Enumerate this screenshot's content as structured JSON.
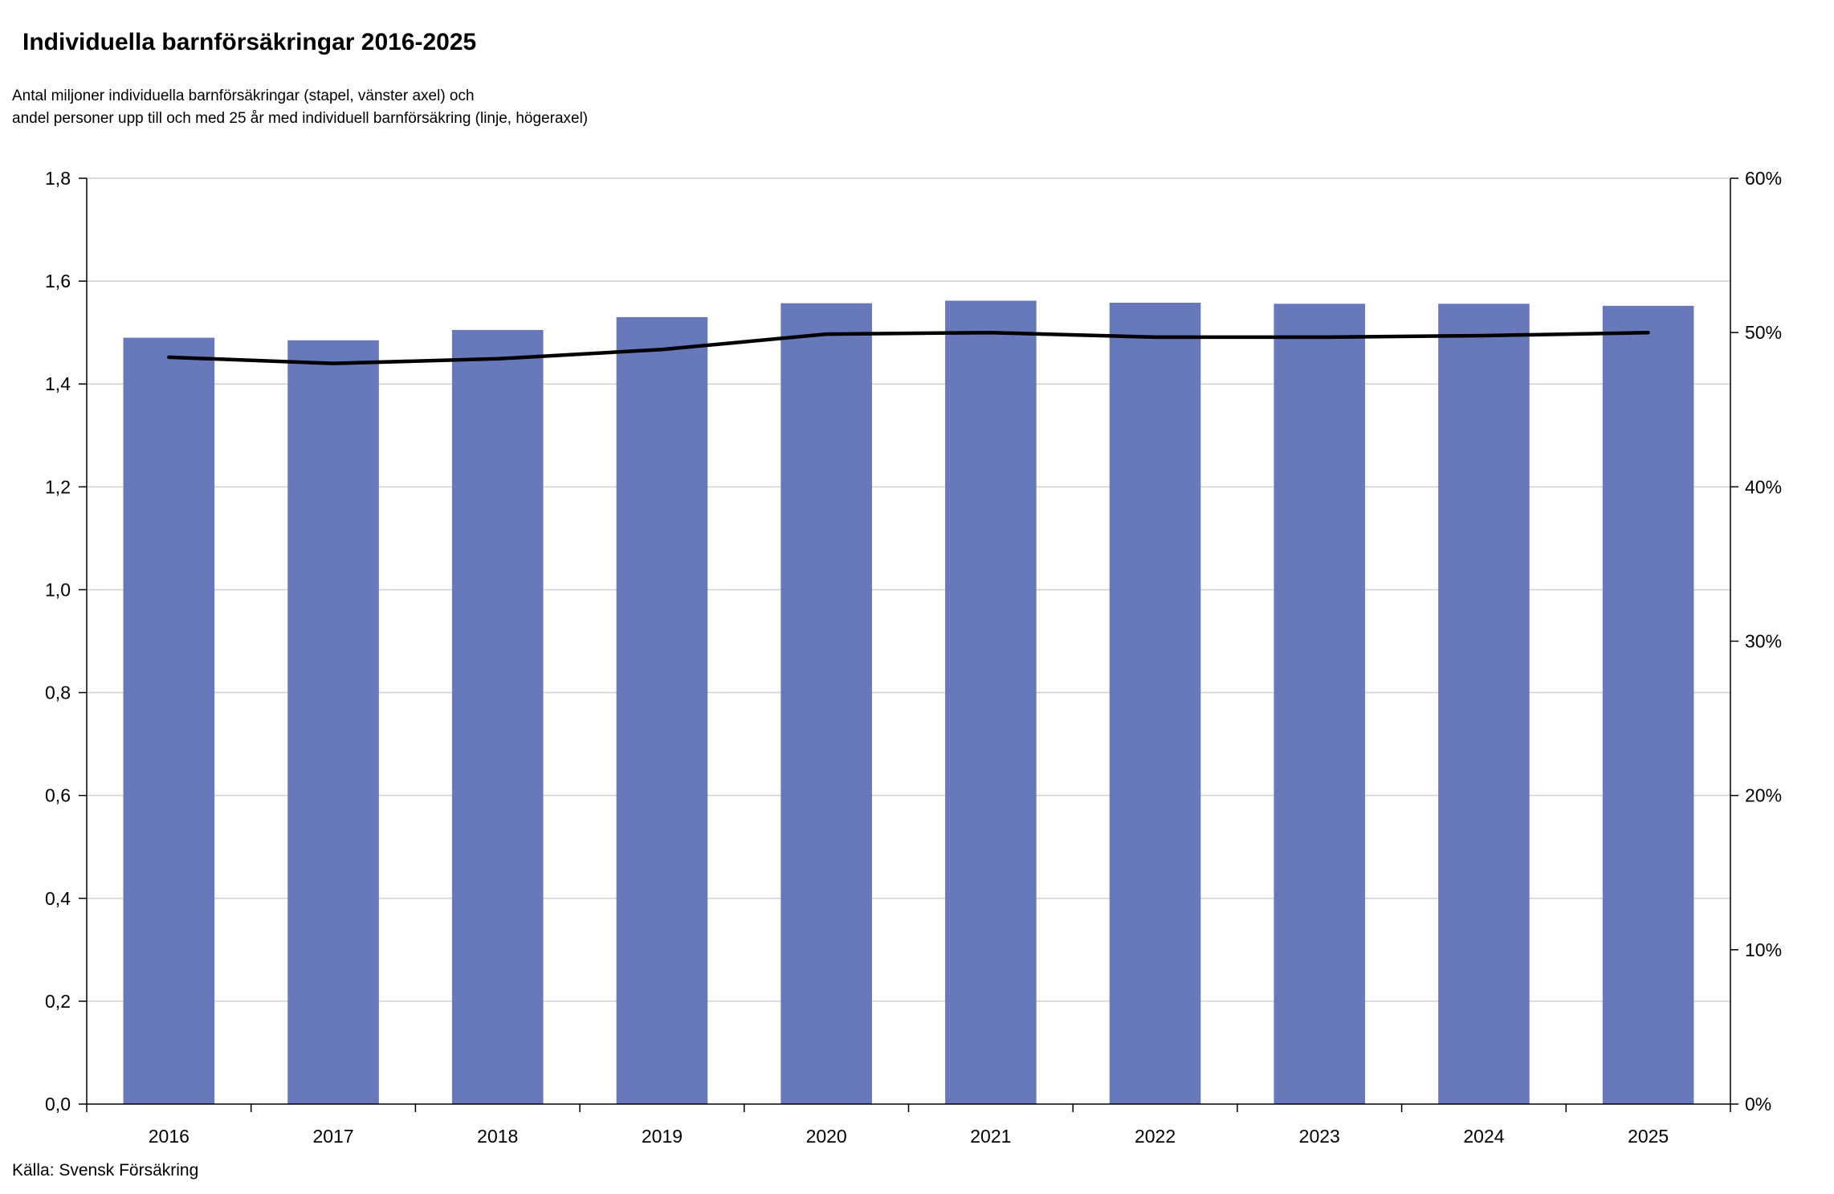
{
  "chart_data": {
    "type": "bar",
    "title": "Individuella barnförsäkringar 2016-2025",
    "subtitle_lines": [
      "Antal miljoner individuella barnförsäkringar (stapel, vänster axel) och",
      "andel personer upp till och med 25 år med individuell barnförsäkring (linje, högeraxel)"
    ],
    "source": "Källa: Svensk Försäkring",
    "categories": [
      "2016",
      "2017",
      "2018",
      "2019",
      "2020",
      "2021",
      "2022",
      "2023",
      "2024",
      "2025"
    ],
    "series": [
      {
        "type": "bar",
        "axis": "left",
        "color": "#6779bb",
        "values": [
          1.49,
          1.485,
          1.505,
          1.53,
          1.557,
          1.562,
          1.558,
          1.556,
          1.556,
          1.552
        ]
      },
      {
        "type": "line",
        "axis": "right",
        "color": "#000000",
        "values": [
          0.484,
          0.48,
          0.483,
          0.489,
          0.499,
          0.5,
          0.497,
          0.497,
          0.498,
          0.5
        ]
      }
    ],
    "y_left": {
      "min": 0,
      "max": 1.8,
      "ticks": [
        "0,0",
        "0,2",
        "0,4",
        "0,6",
        "0,8",
        "1,0",
        "1,2",
        "1,4",
        "1,6",
        "1,8"
      ]
    },
    "y_right": {
      "min": 0,
      "max": 0.6,
      "ticks": [
        "0%",
        "10%",
        "20%",
        "30%",
        "40%",
        "50%",
        "60%"
      ]
    },
    "grid": true,
    "legend": "none"
  }
}
